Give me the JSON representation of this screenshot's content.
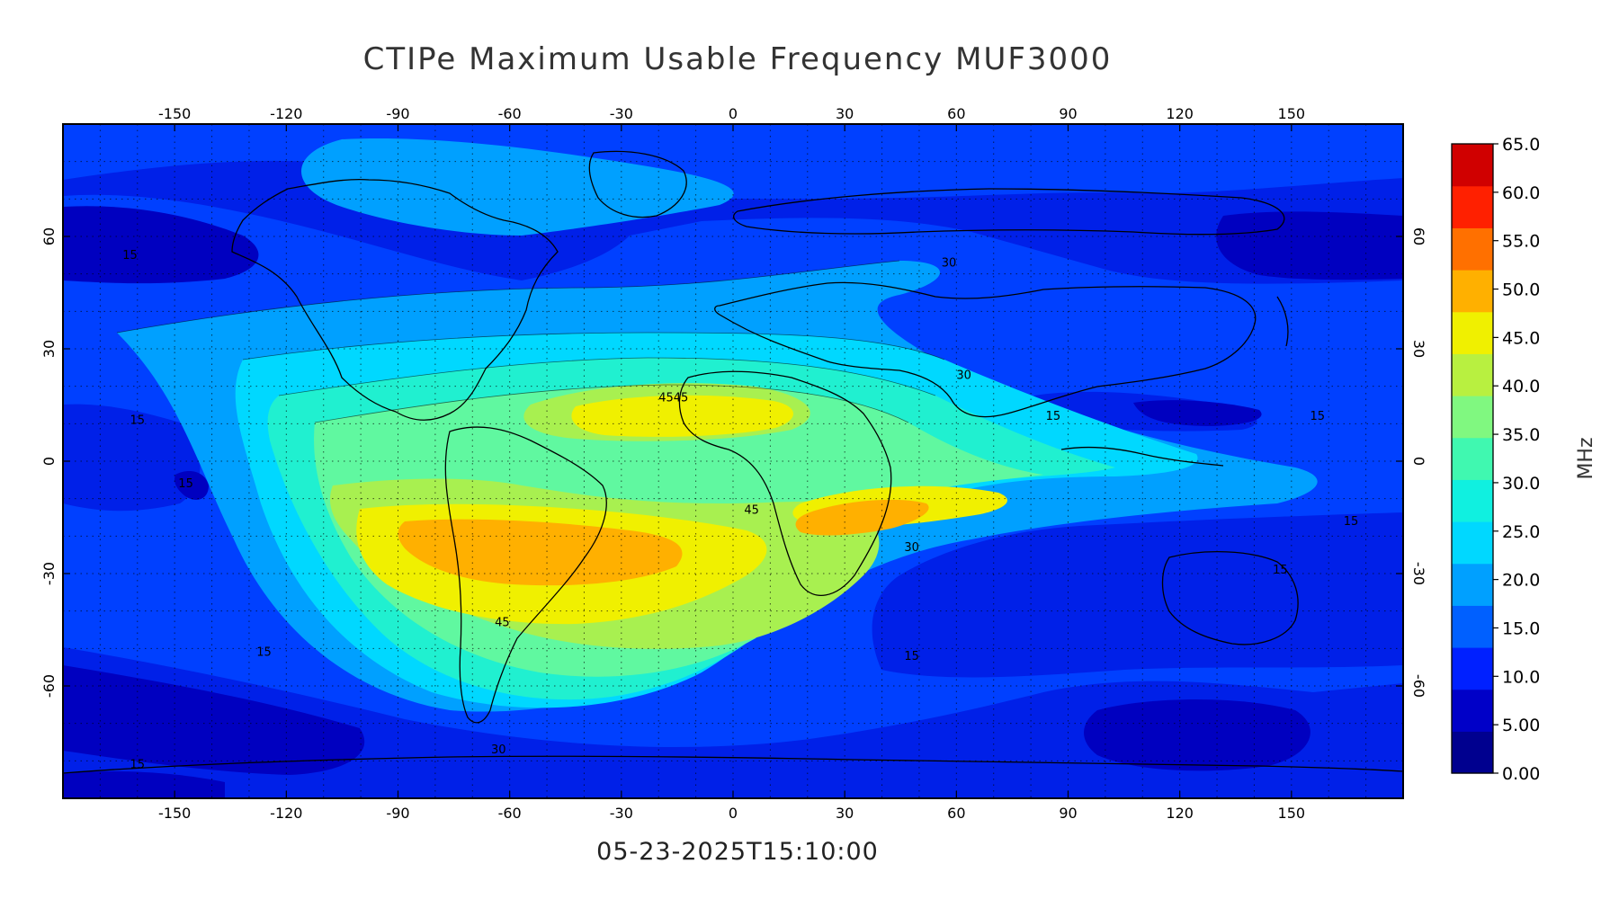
{
  "title": "CTIPe Maximum Usable Frequency MUF3000",
  "timestamp": "05-23-2025T15:10:00",
  "map": {
    "projection": "equirectangular",
    "lon_range": [
      -180,
      180
    ],
    "lat_range": [
      -90,
      90
    ],
    "lon_ticks": [
      "-150",
      "-120",
      "-90",
      "-60",
      "-30",
      "0",
      "30",
      "60",
      "90",
      "120",
      "150"
    ],
    "lat_ticks": [
      "-60",
      "-30",
      "0",
      "30",
      "60"
    ],
    "grid": "dotted"
  },
  "colorbar": {
    "unit": "MHz",
    "labels": [
      "0.00",
      "5.00",
      "10.0",
      "15.0",
      "20.0",
      "25.0",
      "30.0",
      "35.0",
      "40.0",
      "45.0",
      "50.0",
      "55.0",
      "60.0",
      "65.0"
    ],
    "colors": [
      "#00008f",
      "#0000c8",
      "#0020ff",
      "#0060ff",
      "#00a0ff",
      "#00d8ff",
      "#10f0e0",
      "#40f8b0",
      "#80f880",
      "#b8f040",
      "#f0f000",
      "#ffb000",
      "#ff7000",
      "#ff2000",
      "#d00000"
    ]
  },
  "contour_labels": [
    "15",
    "15",
    "15",
    "15",
    "15",
    "15",
    "15",
    "15",
    "15",
    "15",
    "30",
    "30",
    "30",
    "30",
    "45",
    "45",
    "4545"
  ]
}
